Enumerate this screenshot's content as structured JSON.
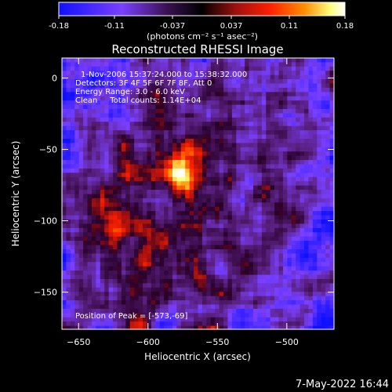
{
  "colorbar": {
    "tick_labels": [
      "-0.18",
      "-0.11",
      "-0.037",
      "0.037",
      "0.11",
      "0.18"
    ],
    "tick_values": [
      -0.18,
      -0.11,
      -0.037,
      0.037,
      0.11,
      0.18
    ],
    "range": [
      -0.18,
      0.18
    ],
    "unit_label": "(photons cm⁻² s⁻¹ asec⁻²)"
  },
  "chart_data": {
    "type": "heatmap",
    "title": "Reconstructed RHESSI Image",
    "xlabel": "Heliocentric X (arcsec)",
    "ylabel": "Heliocentric Y (arcsec)",
    "xlim": [
      -662,
      -466
    ],
    "ylim": [
      -176,
      14
    ],
    "x_ticks": [
      -650,
      -600,
      -550,
      -500
    ],
    "y_ticks": [
      0,
      -50,
      -100,
      -150
    ],
    "peak": [
      -573,
      -69
    ],
    "peak_value": 0.18,
    "colormap": [
      "#1010ff",
      "#7a40ff",
      "#5a2080",
      "#000000",
      "#a01010",
      "#ff2000",
      "#ff9000",
      "#ffff80",
      "#ffffff"
    ],
    "annotations": [
      "1-Nov-2006 15:37:24.000 to 15:38:32.000",
      "Detectors: 3F 4F 5F 6F 7F 8F, Att 0",
      "Energy Range: 3.0 - 6.0 keV",
      "Clean     Total counts: 1.14E+04"
    ],
    "peak_label": "Position of Peak = [-573,-69]"
  },
  "footer": {
    "timestamp": "7-May-2022 16:44"
  }
}
